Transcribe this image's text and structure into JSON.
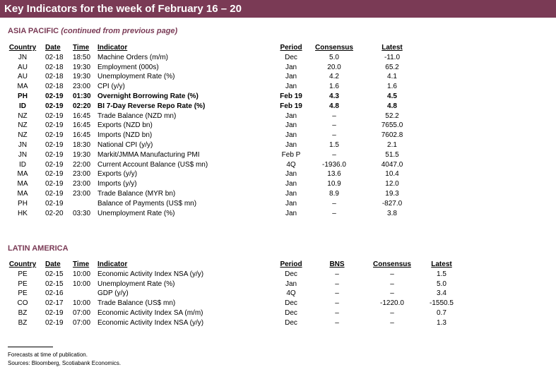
{
  "header": {
    "title": "Key Indicators for the week of February 16 – 20"
  },
  "asia": {
    "title": "ASIA PACIFIC",
    "subtitle": "(continued from previous page)",
    "columns": {
      "country": "Country",
      "date": "Date",
      "time": "Time",
      "indicator": "Indicator",
      "period": "Period",
      "consensus": "Consensus",
      "latest": "Latest"
    },
    "rows": [
      {
        "country": "JN",
        "date": "02-18",
        "time": "18:50",
        "indicator": "Machine Orders (m/m)",
        "period": "Dec",
        "consensus": "5.0",
        "latest": "-11.0"
      },
      {
        "country": "AU",
        "date": "02-18",
        "time": "19:30",
        "indicator": "Employment (000s)",
        "period": "Jan",
        "consensus": "20.0",
        "latest": "65.2"
      },
      {
        "country": "AU",
        "date": "02-18",
        "time": "19:30",
        "indicator": "Unemployment Rate (%)",
        "period": "Jan",
        "consensus": "4.2",
        "latest": "4.1"
      },
      {
        "country": "MA",
        "date": "02-18",
        "time": "23:00",
        "indicator": "CPI (y/y)",
        "period": "Jan",
        "consensus": "1.6",
        "latest": "1.6"
      },
      {
        "country": "PH",
        "date": "02-19",
        "time": "01:30",
        "indicator": "Overnight Borrowing Rate (%)",
        "period": "Feb 19",
        "consensus": "4.3",
        "latest": "4.5",
        "bold": true
      },
      {
        "country": "ID",
        "date": "02-19",
        "time": "02:20",
        "indicator": "BI 7-Day Reverse Repo Rate (%)",
        "period": "Feb 19",
        "consensus": "4.8",
        "latest": "4.8",
        "bold": true
      },
      {
        "country": "NZ",
        "date": "02-19",
        "time": "16:45",
        "indicator": "Trade Balance (NZD mn)",
        "period": "Jan",
        "consensus": "–",
        "latest": "52.2"
      },
      {
        "country": "NZ",
        "date": "02-19",
        "time": "16:45",
        "indicator": "Exports (NZD bn)",
        "period": "Jan",
        "consensus": "–",
        "latest": "7655.0"
      },
      {
        "country": "NZ",
        "date": "02-19",
        "time": "16:45",
        "indicator": "Imports (NZD bn)",
        "period": "Jan",
        "consensus": "–",
        "latest": "7602.8"
      },
      {
        "country": "JN",
        "date": "02-19",
        "time": "18:30",
        "indicator": "National CPI (y/y)",
        "period": "Jan",
        "consensus": "1.5",
        "latest": "2.1"
      },
      {
        "country": "JN",
        "date": "02-19",
        "time": "19:30",
        "indicator": "Markit/JMMA Manufacturing PMI",
        "period": "Feb P",
        "consensus": "–",
        "latest": "51.5"
      },
      {
        "country": "ID",
        "date": "02-19",
        "time": "22:00",
        "indicator": "Current Account Balance (US$ mn)",
        "period": "4Q",
        "consensus": "-1936.0",
        "latest": "4047.0"
      },
      {
        "country": "MA",
        "date": "02-19",
        "time": "23:00",
        "indicator": "Exports (y/y)",
        "period": "Jan",
        "consensus": "13.6",
        "latest": "10.4"
      },
      {
        "country": "MA",
        "date": "02-19",
        "time": "23:00",
        "indicator": "Imports (y/y)",
        "period": "Jan",
        "consensus": "10.9",
        "latest": "12.0"
      },
      {
        "country": "MA",
        "date": "02-19",
        "time": "23:00",
        "indicator": "Trade Balance (MYR bn)",
        "period": "Jan",
        "consensus": "8.9",
        "latest": "19.3"
      },
      {
        "country": "PH",
        "date": "02-19",
        "time": "",
        "indicator": "Balance of Payments (US$ mn)",
        "period": "Jan",
        "consensus": "–",
        "latest": "-827.0"
      },
      {
        "country": "HK",
        "date": "02-20",
        "time": "03:30",
        "indicator": "Unemployment Rate (%)",
        "period": "Jan",
        "consensus": "–",
        "latest": "3.8"
      }
    ]
  },
  "latam": {
    "title": "LATIN AMERICA",
    "columns": {
      "country": "Country",
      "date": "Date",
      "time": "Time",
      "indicator": "Indicator",
      "period": "Period",
      "bns": "BNS",
      "consensus": "Consensus",
      "latest": "Latest"
    },
    "rows": [
      {
        "country": "PE",
        "date": "02-15",
        "time": "10:00",
        "indicator": "Economic Activity Index NSA (y/y)",
        "period": "Dec",
        "bns": "–",
        "consensus": "–",
        "latest": "1.5"
      },
      {
        "country": "PE",
        "date": "02-15",
        "time": "10:00",
        "indicator": "Unemployment Rate (%)",
        "period": "Jan",
        "bns": "–",
        "consensus": "–",
        "latest": "5.0"
      },
      {
        "country": "PE",
        "date": "02-16",
        "time": "",
        "indicator": "GDP (y/y)",
        "period": "4Q",
        "bns": "–",
        "consensus": "–",
        "latest": "3.4"
      },
      {
        "country": "CO",
        "date": "02-17",
        "time": "10:00",
        "indicator": "Trade Balance (US$ mn)",
        "period": "Dec",
        "bns": "–",
        "consensus": "-1220.0",
        "latest": "-1550.5"
      },
      {
        "country": "BZ",
        "date": "02-19",
        "time": "07:00",
        "indicator": "Economic Activity Index SA (m/m)",
        "period": "Dec",
        "bns": "–",
        "consensus": "–",
        "latest": "0.7"
      },
      {
        "country": "BZ",
        "date": "02-19",
        "time": "07:00",
        "indicator": "Economic Activity Index NSA (y/y)",
        "period": "Dec",
        "bns": "–",
        "consensus": "–",
        "latest": "1.3"
      }
    ]
  },
  "footnotes": [
    "Forecasts at time of publication.",
    "Sources: Bloomberg, Scotiabank Economics."
  ]
}
